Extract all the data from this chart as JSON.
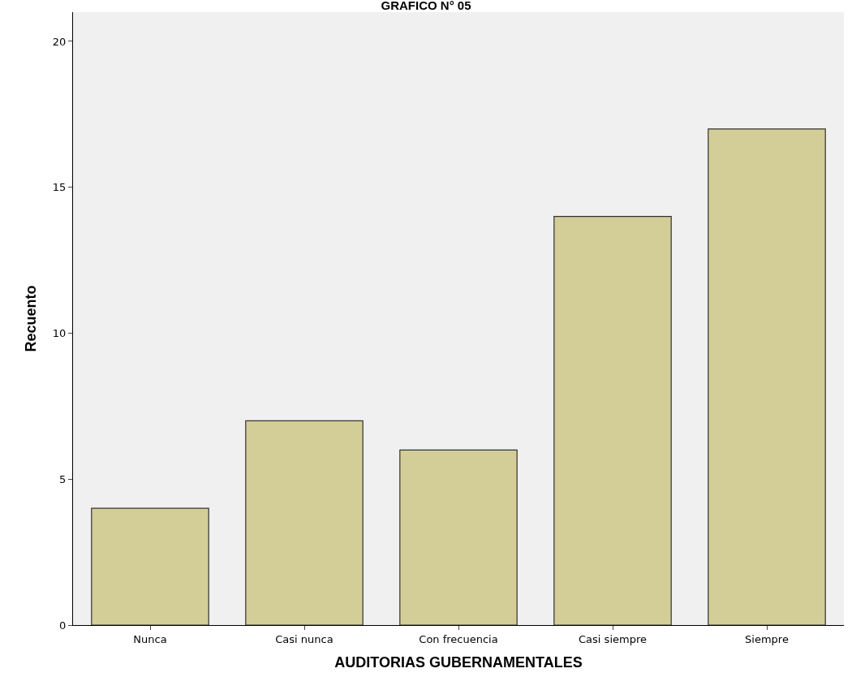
{
  "chart_data": {
    "type": "bar",
    "title": "GRAFICO N° 05",
    "xlabel": "AUDITORIAS GUBERNAMENTALES",
    "ylabel": "Recuento",
    "categories": [
      "Nunca",
      "Casi nunca",
      "Con frecuencia",
      "Casi siempre",
      "Siempre"
    ],
    "values": [
      4,
      7,
      6,
      14,
      17
    ],
    "color": "#d3ce97",
    "ylim": [
      0,
      21
    ],
    "yticks": [
      0,
      5,
      10,
      15,
      20
    ],
    "grid": false
  }
}
